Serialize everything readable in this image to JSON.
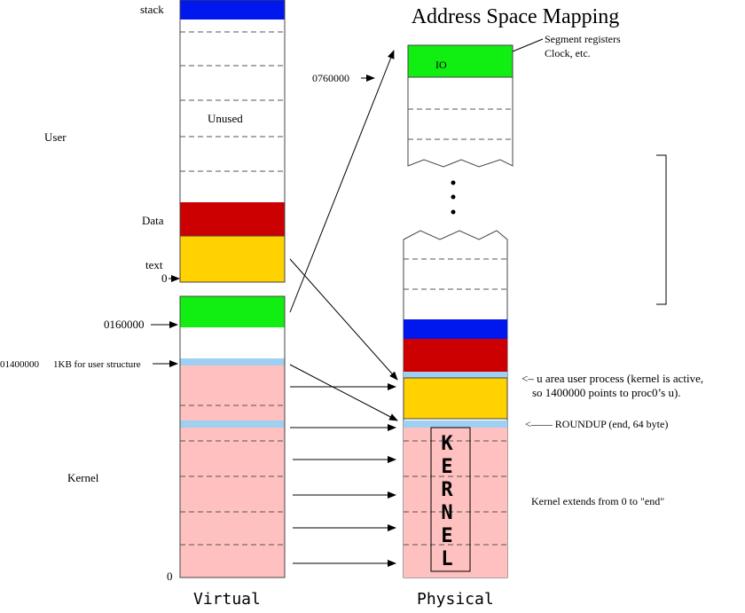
{
  "title": "Address Space Mapping",
  "virtual": {
    "label": "Virtual",
    "stack": "stack",
    "unused": "Unused",
    "user": "User",
    "data": "Data",
    "text": "text",
    "zero_user": "0",
    "addr_0160000": "0160000",
    "addr_01400000": "01400000",
    "user_struct": "1KB for user structure",
    "kernel": "Kernel",
    "zero_kernel": "0"
  },
  "physical": {
    "label": "Physical",
    "io": "IO",
    "addr_0760000": "0760000",
    "seg_note_line1": "Segment registers",
    "seg_note_line2": "Clock, etc.",
    "uarea_note_line1": "u area user process (kernel is active,",
    "uarea_note_line2": "so 1400000 points to proc0’s u).",
    "roundup_note": "ROUNDUP (end, 64 byte)",
    "kernel_extends": "Kernel extends from 0 to \"end\"",
    "kernel_letters": [
      "K",
      "E",
      "R",
      "N",
      "E",
      "L"
    ]
  },
  "colors": {
    "stack_blue": "#0018ee",
    "io_green": "#11ee11",
    "data_red": "#cc0000",
    "text_yellow": "#ffd200",
    "kernel_pink": "#ffc0c0",
    "ustruct_blue": "#9fd0f2"
  }
}
